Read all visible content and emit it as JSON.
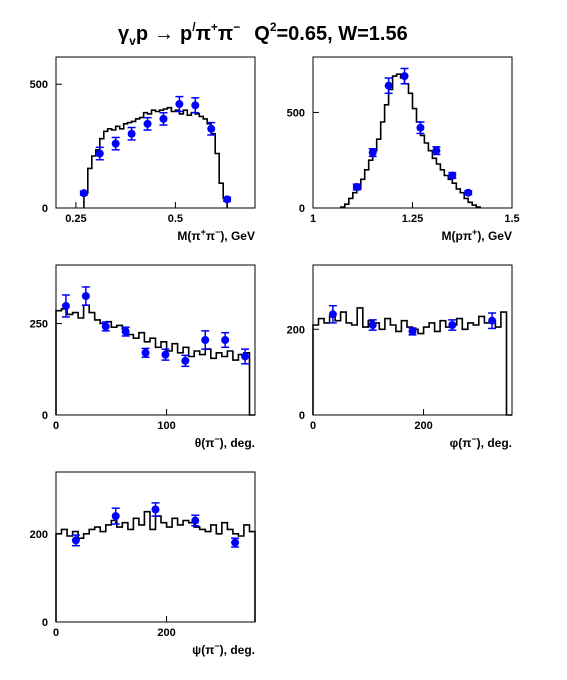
{
  "title": {
    "reaction_lhs": "γ",
    "gamma_sub": "v",
    "proton": "p",
    "arrow": "→",
    "final_p": "p",
    "final_p_prime": "/",
    "pi1": "π",
    "pi1_charge": "+",
    "pi2": "π",
    "pi2_charge": "−",
    "q2_label": "Q",
    "q2_exp": "2",
    "q2_value": "=0.65, W=1.56"
  },
  "colors": {
    "data_points": "#0000ff",
    "histogram": "#000000",
    "frame": "#000000"
  },
  "chart_data": [
    {
      "type": "scatter",
      "xlabel": "M(π⁺π⁻), GeV",
      "xlabel_parts": {
        "pre": "M(π",
        "sup1": "+",
        "mid": "π",
        "sup2": "−",
        "post": "), GeV"
      },
      "xlim": [
        0.2,
        0.7
      ],
      "ylim": [
        0,
        610
      ],
      "xticks": [
        {
          "v": 0.25,
          "t": "0.25"
        },
        {
          "v": 0.5,
          "t": "0.5"
        }
      ],
      "yticks": [
        {
          "v": 0,
          "t": "0"
        },
        {
          "v": 500,
          "t": "500"
        }
      ],
      "series": [
        {
          "kind": "points",
          "x": [
            0.27,
            0.31,
            0.35,
            0.39,
            0.43,
            0.47,
            0.51,
            0.55,
            0.59,
            0.63
          ],
          "y": [
            60,
            220,
            260,
            300,
            340,
            360,
            420,
            415,
            320,
            35
          ],
          "err": [
            8,
            25,
            25,
            25,
            25,
            25,
            30,
            30,
            25,
            8
          ]
        },
        {
          "kind": "histogram",
          "edges": [
            0.27,
            0.28,
            0.29,
            0.3,
            0.31,
            0.32,
            0.33,
            0.34,
            0.35,
            0.36,
            0.37,
            0.38,
            0.39,
            0.4,
            0.41,
            0.42,
            0.43,
            0.44,
            0.45,
            0.46,
            0.47,
            0.48,
            0.49,
            0.5,
            0.51,
            0.52,
            0.53,
            0.54,
            0.55,
            0.56,
            0.57,
            0.58,
            0.59,
            0.6,
            0.61,
            0.62,
            0.63
          ],
          "values": [
            60,
            160,
            210,
            235,
            280,
            310,
            320,
            315,
            330,
            320,
            340,
            345,
            350,
            360,
            365,
            385,
            380,
            395,
            390,
            395,
            400,
            405,
            390,
            395,
            380,
            395,
            375,
            385,
            380,
            370,
            360,
            340,
            300,
            220,
            100,
            40
          ]
        }
      ]
    },
    {
      "type": "scatter",
      "xlabel": "M(pπ⁺), GeV",
      "xlabel_parts": {
        "pre": "M(pπ",
        "sup1": "+",
        "mid": "",
        "sup2": "",
        "post": "), GeV"
      },
      "xlim": [
        1.0,
        1.5
      ],
      "ylim": [
        0,
        790
      ],
      "xticks": [
        {
          "v": 1.0,
          "t": "1"
        },
        {
          "v": 1.25,
          "t": "1.25"
        },
        {
          "v": 1.5,
          "t": "1.5"
        }
      ],
      "yticks": [
        {
          "v": 0,
          "t": "0"
        },
        {
          "v": 500,
          "t": "500"
        }
      ],
      "series": [
        {
          "kind": "points",
          "x": [
            1.11,
            1.15,
            1.19,
            1.23,
            1.27,
            1.31,
            1.35,
            1.39
          ],
          "y": [
            110,
            290,
            640,
            690,
            420,
            300,
            170,
            80
          ],
          "err": [
            15,
            20,
            40,
            40,
            30,
            20,
            15,
            10
          ]
        },
        {
          "kind": "histogram",
          "edges": [
            1.07,
            1.08,
            1.09,
            1.1,
            1.11,
            1.12,
            1.13,
            1.14,
            1.15,
            1.16,
            1.17,
            1.18,
            1.19,
            1.2,
            1.21,
            1.22,
            1.23,
            1.24,
            1.25,
            1.26,
            1.27,
            1.28,
            1.29,
            1.3,
            1.31,
            1.32,
            1.33,
            1.34,
            1.35,
            1.36,
            1.37,
            1.38,
            1.39,
            1.4,
            1.41,
            1.42
          ],
          "values": [
            5,
            20,
            50,
            80,
            100,
            150,
            200,
            250,
            300,
            360,
            450,
            540,
            620,
            690,
            700,
            680,
            650,
            600,
            520,
            450,
            380,
            340,
            300,
            260,
            230,
            200,
            170,
            150,
            130,
            100,
            80,
            50,
            30,
            15,
            5
          ]
        }
      ]
    },
    {
      "type": "scatter",
      "xlabel": "θ(π⁻), deg.",
      "xlabel_parts": {
        "pre": "θ(π",
        "sup1": "−",
        "mid": "",
        "sup2": "",
        "post": "), deg."
      },
      "xlim": [
        0,
        180
      ],
      "ylim": [
        0,
        410
      ],
      "xticks": [
        {
          "v": 0,
          "t": "0"
        },
        {
          "v": 100,
          "t": "100"
        }
      ],
      "yticks": [
        {
          "v": 0,
          "t": "0"
        },
        {
          "v": 250,
          "t": "250"
        }
      ],
      "series": [
        {
          "kind": "points",
          "x": [
            9,
            27,
            45,
            63,
            81,
            99,
            117,
            135,
            153,
            171
          ],
          "y": [
            298,
            325,
            242,
            228,
            170,
            165,
            148,
            205,
            205,
            160
          ],
          "err": [
            30,
            25,
            12,
            12,
            12,
            15,
            15,
            25,
            20,
            20
          ]
        },
        {
          "kind": "histogram",
          "edges": [
            0,
            5,
            10,
            15,
            20,
            25,
            30,
            35,
            40,
            45,
            50,
            55,
            60,
            65,
            70,
            75,
            80,
            85,
            90,
            95,
            100,
            105,
            110,
            115,
            120,
            125,
            130,
            135,
            140,
            145,
            150,
            155,
            160,
            165,
            170,
            175,
            180
          ],
          "values": [
            285,
            290,
            275,
            280,
            265,
            300,
            280,
            260,
            250,
            255,
            240,
            245,
            235,
            220,
            210,
            225,
            200,
            210,
            185,
            200,
            175,
            195,
            170,
            185,
            160,
            175,
            165,
            180,
            155,
            170,
            160,
            175,
            150,
            165,
            170,
            0
          ]
        }
      ]
    },
    {
      "type": "scatter",
      "xlabel": "φ(π⁻), deg.",
      "xlabel_parts": {
        "pre": "φ(π",
        "sup1": "−",
        "mid": "",
        "sup2": "",
        "post": "), deg."
      },
      "xlim": [
        0,
        360
      ],
      "ylim": [
        0,
        350
      ],
      "xticks": [
        {
          "v": 0,
          "t": "0"
        },
        {
          "v": 200,
          "t": "200"
        }
      ],
      "yticks": [
        {
          "v": 0,
          "t": "0"
        },
        {
          "v": 200,
          "t": "200"
        }
      ],
      "series": [
        {
          "kind": "points",
          "x": [
            36,
            108,
            180,
            252,
            324
          ],
          "y": [
            235,
            210,
            195,
            210,
            220
          ],
          "err": [
            20,
            12,
            8,
            12,
            18
          ]
        },
        {
          "kind": "histogram",
          "edges": [
            0,
            10,
            20,
            30,
            40,
            50,
            60,
            70,
            80,
            90,
            100,
            110,
            120,
            130,
            140,
            150,
            160,
            170,
            180,
            190,
            200,
            210,
            220,
            230,
            240,
            250,
            260,
            270,
            280,
            290,
            300,
            310,
            320,
            330,
            340,
            350,
            360
          ],
          "values": [
            210,
            225,
            215,
            230,
            220,
            240,
            215,
            210,
            250,
            205,
            220,
            215,
            200,
            225,
            210,
            195,
            220,
            205,
            200,
            190,
            205,
            215,
            195,
            220,
            205,
            210,
            225,
            200,
            215,
            210,
            230,
            215,
            220,
            205,
            240,
            0
          ]
        }
      ]
    },
    {
      "type": "scatter",
      "xlabel": "ψ(π⁻), deg.",
      "xlabel_parts": {
        "pre": "ψ(π",
        "sup1": "−",
        "mid": "",
        "sup2": "",
        "post": "), deg."
      },
      "xlim": [
        0,
        360
      ],
      "ylim": [
        0,
        340
      ],
      "xticks": [
        {
          "v": 0,
          "t": "0"
        },
        {
          "v": 200,
          "t": "200"
        }
      ],
      "yticks": [
        {
          "v": 0,
          "t": "0"
        },
        {
          "v": 200,
          "t": "200"
        }
      ],
      "series": [
        {
          "kind": "points",
          "x": [
            36,
            108,
            180,
            252,
            324
          ],
          "y": [
            185,
            240,
            255,
            230,
            180
          ],
          "err": [
            12,
            18,
            15,
            12,
            10
          ]
        },
        {
          "kind": "histogram",
          "edges": [
            0,
            10,
            20,
            30,
            40,
            50,
            60,
            70,
            80,
            90,
            100,
            110,
            120,
            130,
            140,
            150,
            160,
            170,
            180,
            190,
            200,
            210,
            220,
            230,
            240,
            250,
            260,
            270,
            280,
            290,
            300,
            310,
            320,
            330,
            340,
            350,
            360
          ],
          "values": [
            200,
            210,
            195,
            205,
            190,
            200,
            210,
            215,
            205,
            220,
            230,
            215,
            225,
            210,
            235,
            220,
            250,
            210,
            240,
            225,
            215,
            235,
            220,
            230,
            225,
            215,
            210,
            205,
            220,
            200,
            225,
            210,
            200,
            195,
            220,
            205
          ]
        }
      ]
    }
  ]
}
